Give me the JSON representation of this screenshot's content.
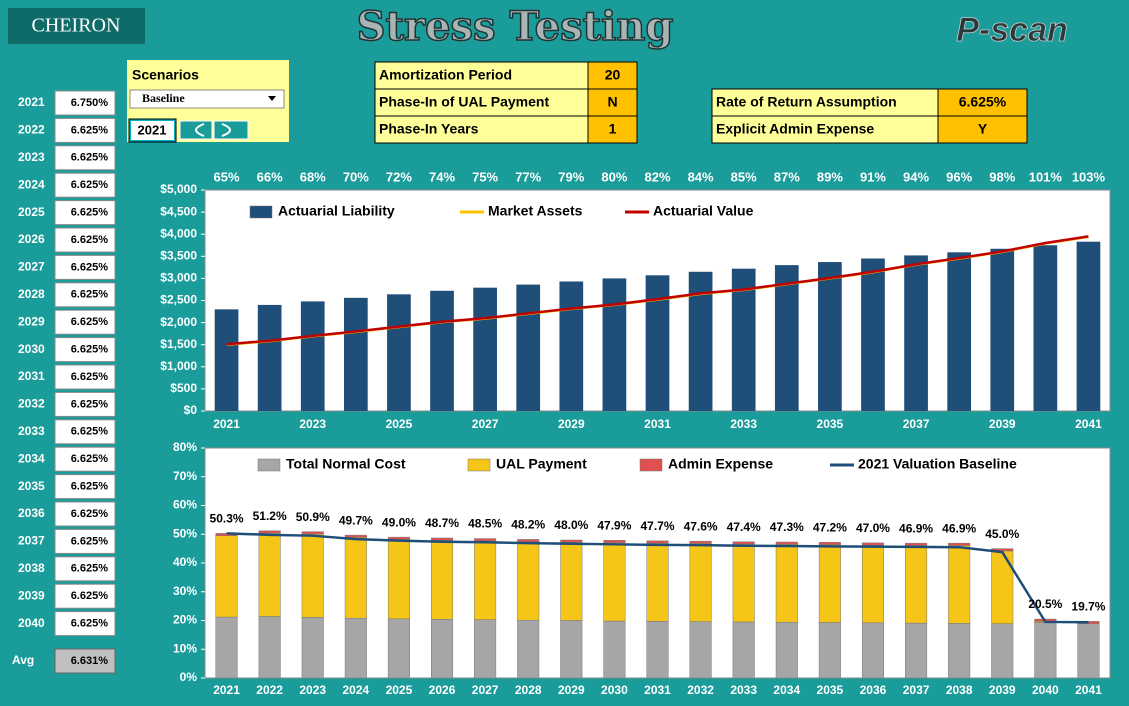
{
  "header": {
    "logo": "CHEIRON",
    "title": "Stress Testing",
    "product": "P-scan"
  },
  "rates": {
    "rows": [
      [
        "2021",
        "6.750%"
      ],
      [
        "2022",
        "6.625%"
      ],
      [
        "2023",
        "6.625%"
      ],
      [
        "2024",
        "6.625%"
      ],
      [
        "2025",
        "6.625%"
      ],
      [
        "2026",
        "6.625%"
      ],
      [
        "2027",
        "6.625%"
      ],
      [
        "2028",
        "6.625%"
      ],
      [
        "2029",
        "6.625%"
      ],
      [
        "2030",
        "6.625%"
      ],
      [
        "2031",
        "6.625%"
      ],
      [
        "2032",
        "6.625%"
      ],
      [
        "2033",
        "6.625%"
      ],
      [
        "2034",
        "6.625%"
      ],
      [
        "2035",
        "6.625%"
      ],
      [
        "2036",
        "6.625%"
      ],
      [
        "2037",
        "6.625%"
      ],
      [
        "2038",
        "6.625%"
      ],
      [
        "2039",
        "6.625%"
      ],
      [
        "2040",
        "6.625%"
      ]
    ],
    "avg": [
      "Avg",
      "6.631%"
    ]
  },
  "scenarios": {
    "label": "Scenarios",
    "selected": "Baseline",
    "year": "2021"
  },
  "parameters": [
    {
      "label": "Amortization Period",
      "value": "20"
    },
    {
      "label": "Phase-In of UAL Payment",
      "value": "N"
    },
    {
      "label": "Phase-In Years",
      "value": "1"
    }
  ],
  "assumptions": [
    {
      "label": "Rate of Return Assumption",
      "value": "6.625%"
    },
    {
      "label": "Explicit Admin Expense",
      "value": "Y"
    }
  ],
  "chart_data": [
    {
      "type": "bar_line",
      "categories": [
        "2021",
        null,
        "2023",
        null,
        "2025",
        null,
        "2027",
        null,
        "2029",
        null,
        "2031",
        null,
        "2033",
        null,
        "2035",
        null,
        "2037",
        null,
        "2039",
        null,
        "2041"
      ],
      "ylim": [
        0,
        5000
      ],
      "yticks": [
        {
          "value": 0,
          "label": "$0"
        },
        {
          "value": 500,
          "label": "$500"
        },
        {
          "value": 1000,
          "label": "$1,000"
        },
        {
          "value": 1500,
          "label": "$1,500"
        },
        {
          "value": 2000,
          "label": "$2,000"
        },
        {
          "value": 2500,
          "label": "$2,500"
        },
        {
          "value": 3000,
          "label": "$3,000"
        },
        {
          "value": 3500,
          "label": "$3,500"
        },
        {
          "value": 4000,
          "label": "$4,000"
        },
        {
          "value": 4500,
          "label": "$4,500"
        },
        {
          "value": 5000,
          "label": "$5,000"
        }
      ],
      "series": [
        {
          "name": "Actuarial Liability",
          "type": "bar",
          "color": "#1f4e79",
          "values": [
            2300,
            2400,
            2480,
            2560,
            2640,
            2720,
            2790,
            2860,
            2930,
            3000,
            3070,
            3150,
            3220,
            3300,
            3370,
            3450,
            3520,
            3590,
            3670,
            3750,
            3830
          ]
        },
        {
          "name": "Market Assets",
          "type": "line",
          "color": "#ffc000",
          "values": [
            1500,
            1580,
            1690,
            1790,
            1900,
            2010,
            2090,
            2200,
            2310,
            2400,
            2520,
            2650,
            2740,
            2870,
            3000,
            3140,
            3310,
            3450,
            3600,
            3790,
            3940
          ]
        },
        {
          "name": "Actuarial Value",
          "type": "line",
          "color": "#c00000",
          "values": [
            1510,
            1590,
            1700,
            1800,
            1910,
            2020,
            2100,
            2210,
            2320,
            2410,
            2530,
            2660,
            2750,
            2880,
            3010,
            3150,
            3320,
            3460,
            3610,
            3800,
            3950
          ]
        }
      ],
      "funded_ratios": {
        "values": [
          65,
          66,
          68,
          70,
          72,
          74,
          75,
          77,
          79,
          80,
          82,
          84,
          85,
          87,
          89,
          91,
          94,
          96,
          98,
          101,
          103
        ],
        "value_labels": [
          "65%",
          "66%",
          "68%",
          "70%",
          "72%",
          "74%",
          "75%",
          "77%",
          "79%",
          "80%",
          "82%",
          "84%",
          "85%",
          "87%",
          "89%",
          "91%",
          "94%",
          "96%",
          "98%",
          "101%",
          "103%"
        ]
      }
    },
    {
      "type": "stacked_bar_line",
      "categories": [
        "2021",
        "2022",
        "2023",
        "2024",
        "2025",
        "2026",
        "2027",
        "2028",
        "2029",
        "2030",
        "2031",
        "2032",
        "2033",
        "2034",
        "2035",
        "2036",
        "2037",
        "2038",
        "2039",
        "2040",
        "2041"
      ],
      "ylim": [
        0,
        80
      ],
      "yticks": [
        {
          "value": 0,
          "label": "0%"
        },
        {
          "value": 10,
          "label": "10%"
        },
        {
          "value": 20,
          "label": "20%"
        },
        {
          "value": 30,
          "label": "30%"
        },
        {
          "value": 40,
          "label": "40%"
        },
        {
          "value": 50,
          "label": "50%"
        },
        {
          "value": 60,
          "label": "60%"
        },
        {
          "value": 70,
          "label": "70%"
        },
        {
          "value": 80,
          "label": "80%"
        }
      ],
      "series": [
        {
          "name": "Total Normal Cost",
          "type": "bar",
          "color": "#a6a6a6",
          "values": [
            21.2,
            21.4,
            21.1,
            20.8,
            20.6,
            20.4,
            20.3,
            20.1,
            20.0,
            19.8,
            19.7,
            19.6,
            19.5,
            19.4,
            19.3,
            19.2,
            19.1,
            19.0,
            18.9,
            19.3,
            18.9
          ]
        },
        {
          "name": "UAL Payment",
          "type": "bar",
          "color": "#f5c518",
          "values": [
            28.3,
            29.0,
            29.0,
            28.1,
            27.6,
            27.5,
            27.4,
            27.3,
            27.2,
            27.3,
            27.2,
            27.2,
            27.1,
            27.1,
            27.1,
            27.0,
            27.0,
            27.1,
            25.3,
            0.4,
            0.0
          ]
        },
        {
          "name": "Admin Expense",
          "type": "bar",
          "color": "#e05050",
          "values": [
            0.8,
            0.8,
            0.8,
            0.8,
            0.8,
            0.8,
            0.8,
            0.8,
            0.8,
            0.8,
            0.8,
            0.8,
            0.8,
            0.8,
            0.8,
            0.8,
            0.8,
            0.8,
            0.8,
            0.8,
            0.8
          ]
        },
        {
          "name": "2021 Valuation Baseline",
          "type": "line",
          "color": "#1f4e79",
          "values": [
            50.3,
            49.8,
            49.5,
            48.3,
            47.8,
            47.4,
            47.2,
            46.9,
            46.7,
            46.5,
            46.3,
            46.2,
            46.0,
            45.9,
            45.8,
            45.7,
            45.6,
            45.5,
            43.8,
            19.5,
            19.4
          ]
        }
      ],
      "totals": {
        "values": [
          50.3,
          51.2,
          50.9,
          49.7,
          49.0,
          48.7,
          48.5,
          48.2,
          48.0,
          47.9,
          47.7,
          47.6,
          47.4,
          47.3,
          47.2,
          47.0,
          46.9,
          46.9,
          45.0,
          20.5,
          19.7
        ],
        "value_labels": [
          "50.3%",
          "51.2%",
          "50.9%",
          "49.7%",
          "49.0%",
          "48.7%",
          "48.5%",
          "48.2%",
          "48.0%",
          "47.9%",
          "47.7%",
          "47.6%",
          "47.4%",
          "47.3%",
          "47.2%",
          "47.0%",
          "46.9%",
          "46.9%",
          "45.0%",
          "20.5%",
          "19.7%"
        ]
      }
    }
  ]
}
